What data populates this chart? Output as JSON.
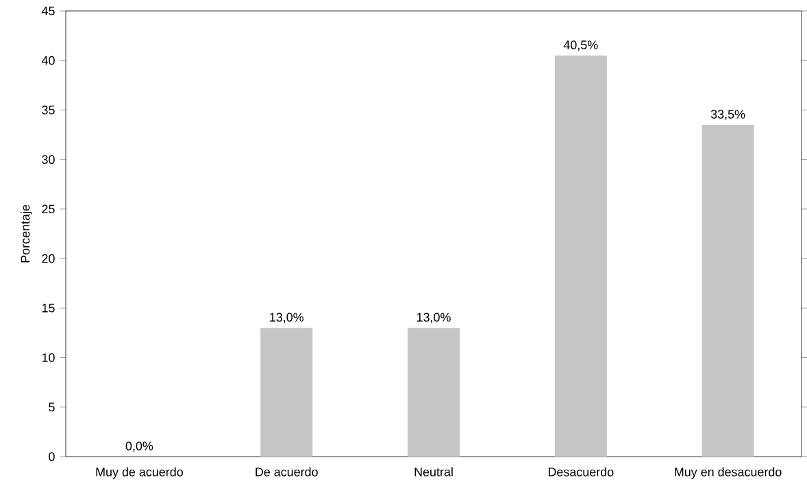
{
  "chart_data": {
    "type": "bar",
    "ylabel": "Porcentaje",
    "categories": [
      "Muy de acuerdo",
      "De acuerdo",
      "Neutral",
      "Desacuerdo",
      "Muy en desacuerdo"
    ],
    "values": [
      0,
      13,
      13,
      40.5,
      33.5
    ],
    "value_labels": [
      "0,0%",
      "13,0%",
      "13,0%",
      "40,5%",
      "33,5%"
    ],
    "color": "#c6c6c6",
    "ylim": [
      0,
      45
    ],
    "yticks": [
      0,
      5,
      10,
      15,
      20,
      25,
      30,
      35,
      40,
      45
    ]
  }
}
